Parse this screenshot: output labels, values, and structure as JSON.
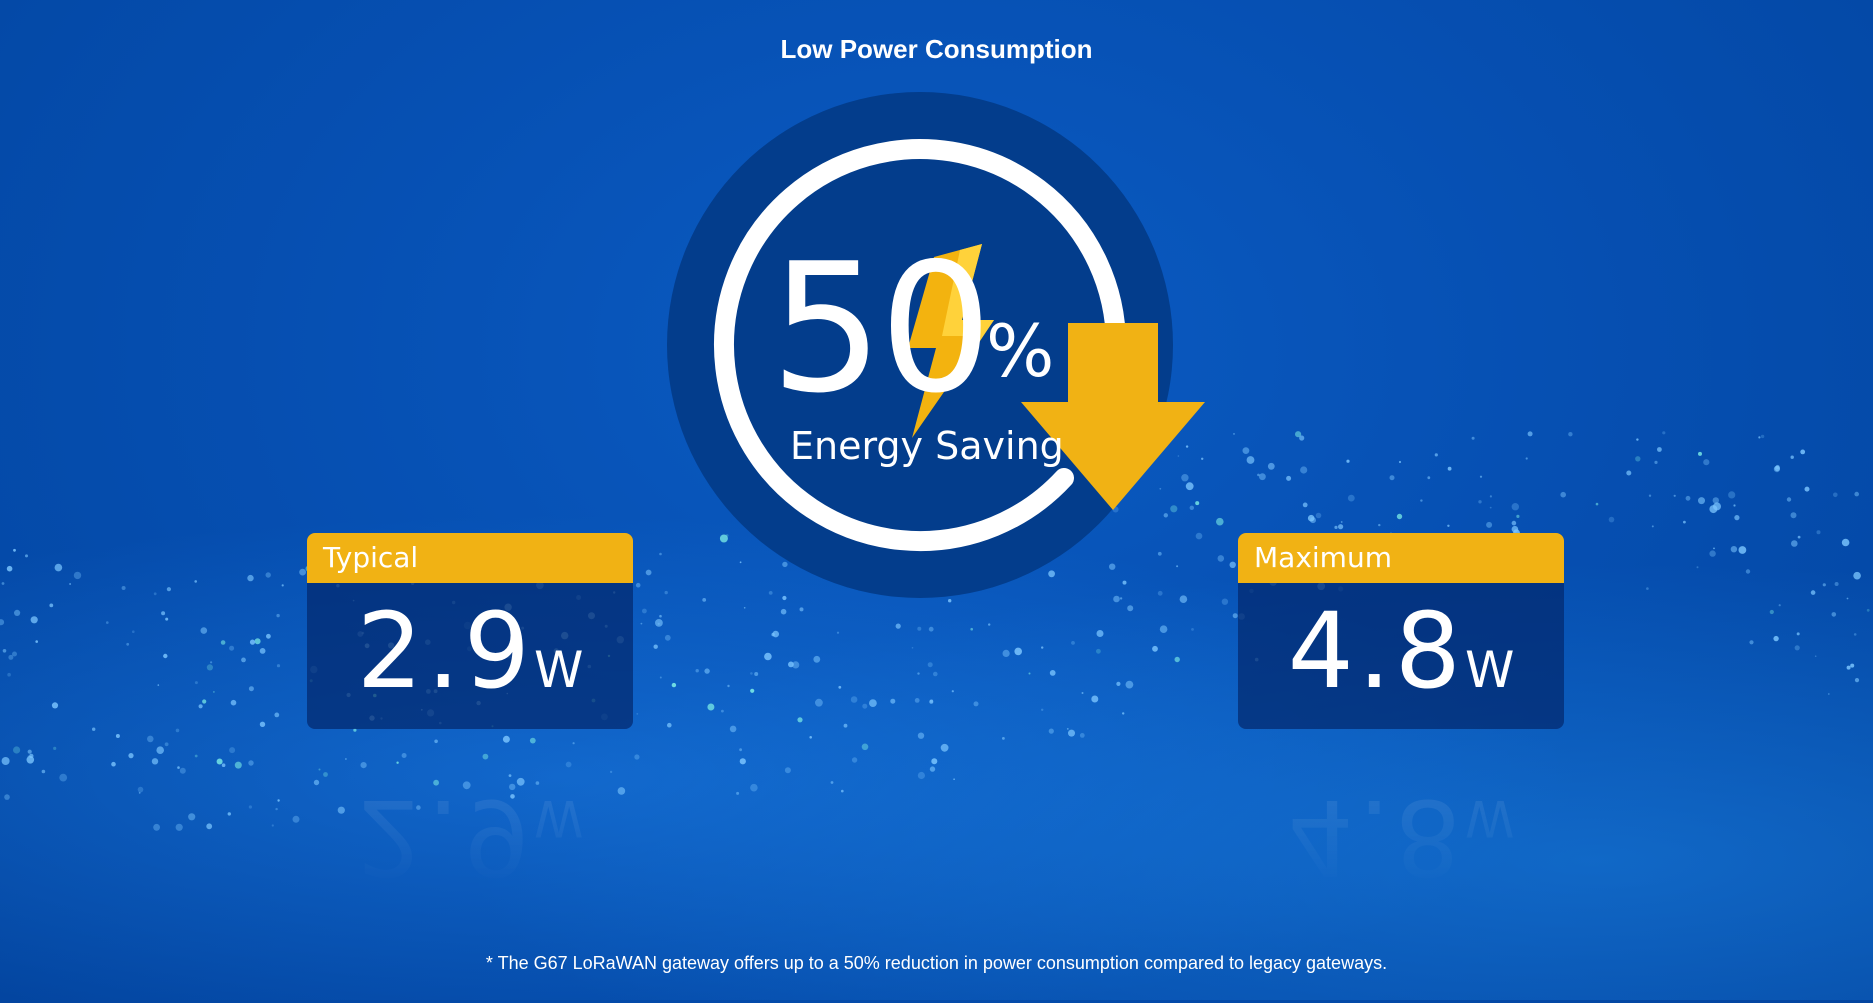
{
  "page": {
    "title": "Low Power Consumption",
    "footnote": "* The G67 LoRaWAN gateway offers up to a 50% reduction in power consumption compared to legacy gateways."
  },
  "hero": {
    "value": "50",
    "unit": "%",
    "label": "Energy Saving",
    "icons": [
      "lightning-bolt-icon",
      "down-arrow-icon"
    ]
  },
  "cards": [
    {
      "label": "Typical",
      "value": "2.9",
      "unit": "W"
    },
    {
      "label": "Maximum",
      "value": "4.8",
      "unit": "W"
    }
  ],
  "colors": {
    "background": "#0650b3",
    "circle": "#033d8c",
    "accent": "#f1b214",
    "text": "#ffffff"
  }
}
